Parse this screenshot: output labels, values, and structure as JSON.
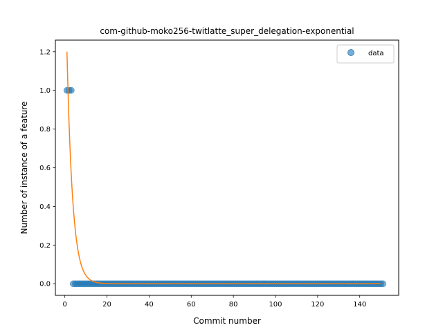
{
  "chart_data": {
    "type": "scatter",
    "title": "com-github-moko256-twitlatte_super_delegation-exponential",
    "xlabel": "Commit number",
    "ylabel": "Number of instance of a feature",
    "xlim": [
      -4.5,
      158.5
    ],
    "ylim": [
      -0.06,
      1.26
    ],
    "xticks": [
      0,
      20,
      40,
      60,
      80,
      100,
      120,
      140
    ],
    "yticks": [
      0.0,
      0.2,
      0.4,
      0.6,
      0.8,
      1.0,
      1.2
    ],
    "ytick_labels": [
      "0.0",
      "0.2",
      "0.4",
      "0.6",
      "0.8",
      "1.0",
      "1.2"
    ],
    "legend": {
      "placement": "top-right",
      "entries": [
        "data"
      ]
    },
    "grid": false,
    "series": [
      {
        "name": "data",
        "kind": "scatter",
        "color": "#1f77b4",
        "x_range": [
          1,
          151
        ],
        "ones_at": [
          1,
          2,
          3
        ],
        "other_value": 0
      },
      {
        "kind": "line",
        "color": "#ff7f0e",
        "model": "exponential",
        "a": 1.2,
        "b": 0.37,
        "x_start": 1,
        "x_end": 150
      }
    ]
  }
}
